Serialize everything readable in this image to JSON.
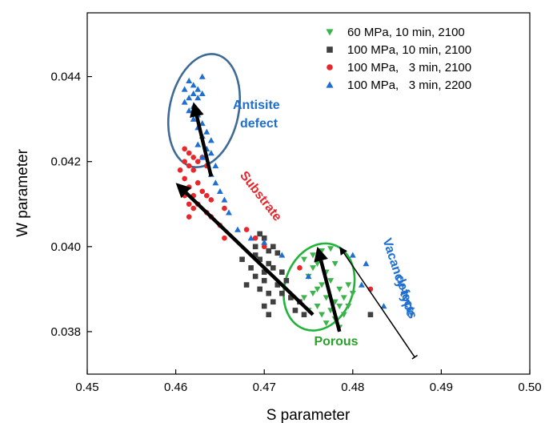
{
  "chart_data": {
    "type": "scatter",
    "xlabel": "S parameter",
    "ylabel": "W parameter",
    "xlim": [
      0.45,
      0.5
    ],
    "ylim": [
      0.037,
      0.0455
    ],
    "x_ticks": [
      "0.45",
      "0.46",
      "0.47",
      "0.48",
      "0.49",
      "0.50"
    ],
    "x_tick_values": [
      0.45,
      0.46,
      0.47,
      0.48,
      0.49,
      0.5
    ],
    "y_ticks": [
      "0.038",
      "0.040",
      "0.042",
      "0.044"
    ],
    "y_tick_values": [
      0.038,
      0.04,
      0.042,
      0.044
    ],
    "grid": false,
    "legend_position": "top-right",
    "series": [
      {
        "name": "60 MPa, 10 min, 2100",
        "marker": "triangle-down",
        "color": "#3cb44b",
        "points": [
          [
            0.4745,
            0.0397
          ],
          [
            0.4755,
            0.0398
          ],
          [
            0.4765,
            0.0399
          ],
          [
            0.4775,
            0.03995
          ],
          [
            0.476,
            0.0396
          ],
          [
            0.477,
            0.0394
          ],
          [
            0.478,
            0.0396
          ],
          [
            0.475,
            0.0393
          ],
          [
            0.4765,
            0.0391
          ],
          [
            0.4775,
            0.0392
          ],
          [
            0.4785,
            0.039
          ],
          [
            0.4795,
            0.0391
          ],
          [
            0.4755,
            0.0389
          ],
          [
            0.477,
            0.0388
          ],
          [
            0.478,
            0.0387
          ],
          [
            0.479,
            0.0388
          ],
          [
            0.48,
            0.0389
          ],
          [
            0.476,
            0.0386
          ],
          [
            0.4775,
            0.0385
          ],
          [
            0.4785,
            0.0386
          ],
          [
            0.4765,
            0.0384
          ],
          [
            0.475,
            0.0385
          ],
          [
            0.479,
            0.0384
          ],
          [
            0.478,
            0.0383
          ],
          [
            0.477,
            0.0382
          ],
          [
            0.4785,
            0.0381
          ],
          [
            0.476,
            0.039
          ],
          [
            0.4745,
            0.0388
          ],
          [
            0.4795,
            0.0386
          ],
          [
            0.4755,
            0.0395
          ]
        ]
      },
      {
        "name": "100 MPa, 10 min, 2100",
        "marker": "square",
        "color": "#404040",
        "points": [
          [
            0.4695,
            0.0403
          ],
          [
            0.47,
            0.0402
          ],
          [
            0.469,
            0.04
          ],
          [
            0.4705,
            0.0399
          ],
          [
            0.471,
            0.04
          ],
          [
            0.4715,
            0.03985
          ],
          [
            0.4695,
            0.0397
          ],
          [
            0.4705,
            0.0396
          ],
          [
            0.4685,
            0.0395
          ],
          [
            0.47,
            0.0394
          ],
          [
            0.471,
            0.0395
          ],
          [
            0.472,
            0.0394
          ],
          [
            0.4675,
            0.0397
          ],
          [
            0.469,
            0.0393
          ],
          [
            0.47,
            0.0392
          ],
          [
            0.4715,
            0.0391
          ],
          [
            0.4725,
            0.0392
          ],
          [
            0.4695,
            0.039
          ],
          [
            0.4705,
            0.0389
          ],
          [
            0.472,
            0.0389
          ],
          [
            0.468,
            0.0391
          ],
          [
            0.471,
            0.0387
          ],
          [
            0.47,
            0.0386
          ],
          [
            0.473,
            0.0388
          ],
          [
            0.474,
            0.0387
          ],
          [
            0.4735,
            0.0385
          ],
          [
            0.4705,
            0.0384
          ],
          [
            0.4745,
            0.0384
          ],
          [
            0.482,
            0.0384
          ],
          [
            0.469,
            0.0398
          ]
        ]
      },
      {
        "name": "100 MPa,   3 min, 2100",
        "marker": "circle",
        "color": "#e8262b",
        "points": [
          [
            0.461,
            0.0423
          ],
          [
            0.4615,
            0.0422
          ],
          [
            0.462,
            0.0421
          ],
          [
            0.461,
            0.042
          ],
          [
            0.4625,
            0.042
          ],
          [
            0.463,
            0.0421
          ],
          [
            0.4615,
            0.0419
          ],
          [
            0.4605,
            0.0418
          ],
          [
            0.462,
            0.0418
          ],
          [
            0.4635,
            0.0419
          ],
          [
            0.461,
            0.0416
          ],
          [
            0.4625,
            0.0415
          ],
          [
            0.4615,
            0.0414
          ],
          [
            0.463,
            0.0413
          ],
          [
            0.462,
            0.0412
          ],
          [
            0.4635,
            0.0412
          ],
          [
            0.461,
            0.0412
          ],
          [
            0.4615,
            0.041
          ],
          [
            0.4625,
            0.041
          ],
          [
            0.464,
            0.0411
          ],
          [
            0.462,
            0.0409
          ],
          [
            0.4635,
            0.0408
          ],
          [
            0.4655,
            0.0409
          ],
          [
            0.464,
            0.0407
          ],
          [
            0.468,
            0.0404
          ],
          [
            0.4655,
            0.0402
          ],
          [
            0.469,
            0.0402
          ],
          [
            0.47,
            0.04
          ],
          [
            0.474,
            0.0395
          ],
          [
            0.482,
            0.039
          ],
          [
            0.4615,
            0.0407
          ],
          [
            0.465,
            0.0405
          ]
        ]
      },
      {
        "name": "100 MPa,   3 min, 2200",
        "marker": "triangle-up",
        "color": "#1f6fd0",
        "points": [
          [
            0.4615,
            0.0439
          ],
          [
            0.462,
            0.0438
          ],
          [
            0.4625,
            0.0437
          ],
          [
            0.461,
            0.0437
          ],
          [
            0.462,
            0.0436
          ],
          [
            0.463,
            0.0436
          ],
          [
            0.4615,
            0.0435
          ],
          [
            0.4625,
            0.0435
          ],
          [
            0.461,
            0.0434
          ],
          [
            0.462,
            0.0433
          ],
          [
            0.4615,
            0.0432
          ],
          [
            0.4625,
            0.0431
          ],
          [
            0.462,
            0.043
          ],
          [
            0.463,
            0.0429
          ],
          [
            0.4625,
            0.0428
          ],
          [
            0.4635,
            0.0427
          ],
          [
            0.463,
            0.0426
          ],
          [
            0.464,
            0.0425
          ],
          [
            0.4625,
            0.0424
          ],
          [
            0.4635,
            0.0423
          ],
          [
            0.464,
            0.0422
          ],
          [
            0.463,
            0.0421
          ],
          [
            0.4645,
            0.0419
          ],
          [
            0.464,
            0.0417
          ],
          [
            0.4645,
            0.0415
          ],
          [
            0.465,
            0.0413
          ],
          [
            0.4655,
            0.0411
          ],
          [
            0.466,
            0.0408
          ],
          [
            0.467,
            0.0404
          ],
          [
            0.4685,
            0.0402
          ],
          [
            0.47,
            0.0401
          ],
          [
            0.472,
            0.0398
          ],
          [
            0.475,
            0.0393
          ],
          [
            0.481,
            0.0391
          ],
          [
            0.4835,
            0.0386
          ],
          [
            0.4815,
            0.0396
          ],
          [
            0.48,
            0.0398
          ],
          [
            0.463,
            0.044
          ]
        ]
      }
    ],
    "annotations": [
      {
        "text": "Antisite",
        "color": "#1f6fd0"
      },
      {
        "text": "defect",
        "color": "#1f6fd0"
      },
      {
        "text": "Substrate",
        "color": "#e8262b"
      },
      {
        "text": "Porous",
        "color": "#2ca02c"
      },
      {
        "text": "Vacancy-type",
        "color": "#1f6fd0"
      },
      {
        "text": "defects",
        "color": "#1f6fd0"
      }
    ],
    "arrows": [
      {
        "from": [
          0.464,
          0.04165
        ],
        "to": [
          0.462,
          0.0434
        ],
        "style": "bold"
      },
      {
        "from": [
          0.4755,
          0.0384
        ],
        "to": [
          0.46,
          0.0415
        ],
        "style": "bold"
      },
      {
        "from": [
          0.4785,
          0.038
        ],
        "to": [
          0.476,
          0.04
        ],
        "style": "bold"
      },
      {
        "from": [
          0.487,
          0.0374
        ],
        "to": [
          0.4785,
          0.04
        ],
        "style": "thin"
      }
    ],
    "ellipses": [
      {
        "center": [
          0.4632,
          0.0432
        ],
        "rx_data": 0.0039,
        "ry_data": 0.00135,
        "rotate_deg": 12,
        "color": "#3e6b95"
      },
      {
        "center": [
          0.4762,
          0.03905
        ],
        "rx_data": 0.00385,
        "ry_data": 0.00105,
        "rotate_deg": 20,
        "color": "#22b33a"
      }
    ]
  }
}
